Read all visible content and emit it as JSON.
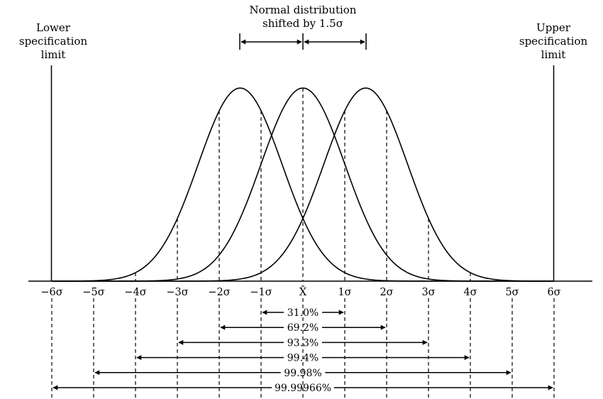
{
  "title": {
    "line1": "Normal distribution",
    "line2": "shifted by 1.5σ"
  },
  "lower_limit": {
    "line1": "Lower",
    "line2": "specification",
    "line3": "limit"
  },
  "upper_limit": {
    "line1": "Upper",
    "line2": "specification",
    "line3": "limit"
  },
  "axis": {
    "ticks": [
      {
        "value": -6,
        "label": "−6σ"
      },
      {
        "value": -5,
        "label": "−5σ"
      },
      {
        "value": -4,
        "label": "−4σ"
      },
      {
        "value": -3,
        "label": "−3σ"
      },
      {
        "value": -2,
        "label": "−2σ"
      },
      {
        "value": -1,
        "label": "−1σ"
      },
      {
        "value": 0,
        "label": "X̄"
      },
      {
        "value": 1,
        "label": "1σ"
      },
      {
        "value": 2,
        "label": "2σ"
      },
      {
        "value": 3,
        "label": "3σ"
      },
      {
        "value": 4,
        "label": "4σ"
      },
      {
        "value": 5,
        "label": "5σ"
      },
      {
        "value": 6,
        "label": "6σ"
      }
    ]
  },
  "shift_sigma": 1.5,
  "percentages": [
    {
      "label": "31.0%",
      "from": -1,
      "to": 1
    },
    {
      "label": "69.2%",
      "from": -2,
      "to": 2
    },
    {
      "label": "93.3%",
      "from": -3,
      "to": 3
    },
    {
      "label": "99.4%",
      "from": -4,
      "to": 4
    },
    {
      "label": "99.98%",
      "from": -5,
      "to": 5
    },
    {
      "label": "99.99966%",
      "from": -6,
      "to": 6
    }
  ]
}
